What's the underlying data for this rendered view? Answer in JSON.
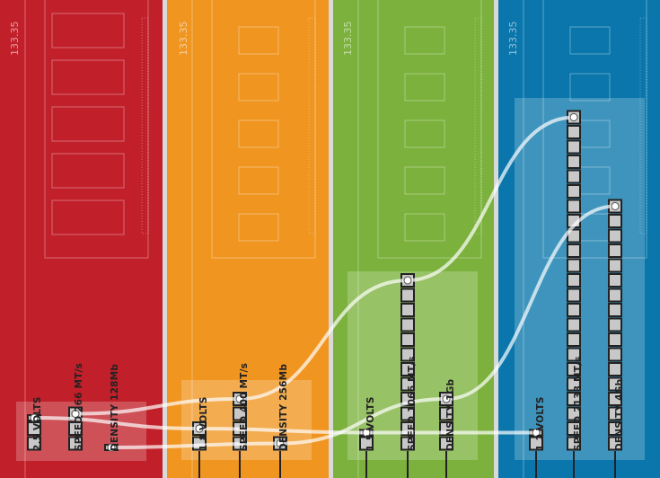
{
  "colors": {
    "ddr1": "#c1202a",
    "ddr2": "#f0951f",
    "ddr3": "#7bb13c",
    "ddr4": "#0a76ab"
  },
  "columns": [
    {
      "dimension": "133.35",
      "volts": "2.5 VOLTS",
      "speed": "SPEED 266 MT/s",
      "density": "DENSITY 128Mb"
    },
    {
      "dimension": "133.35",
      "volts": "1.8 VOLTS",
      "speed": "SPEED 400 MT/s",
      "density": "DENSITY 256Mb"
    },
    {
      "dimension": "133.35",
      "volts": "1.5 VOLTS",
      "speed": "SPEED 1066 MT/s",
      "density": "DENSITY 1Gb"
    },
    {
      "dimension": "133.35",
      "volts": "1.2 VOLTS",
      "speed": "SPEED 2133 MT/s",
      "density": "DENSITY 4Gb"
    }
  ]
}
